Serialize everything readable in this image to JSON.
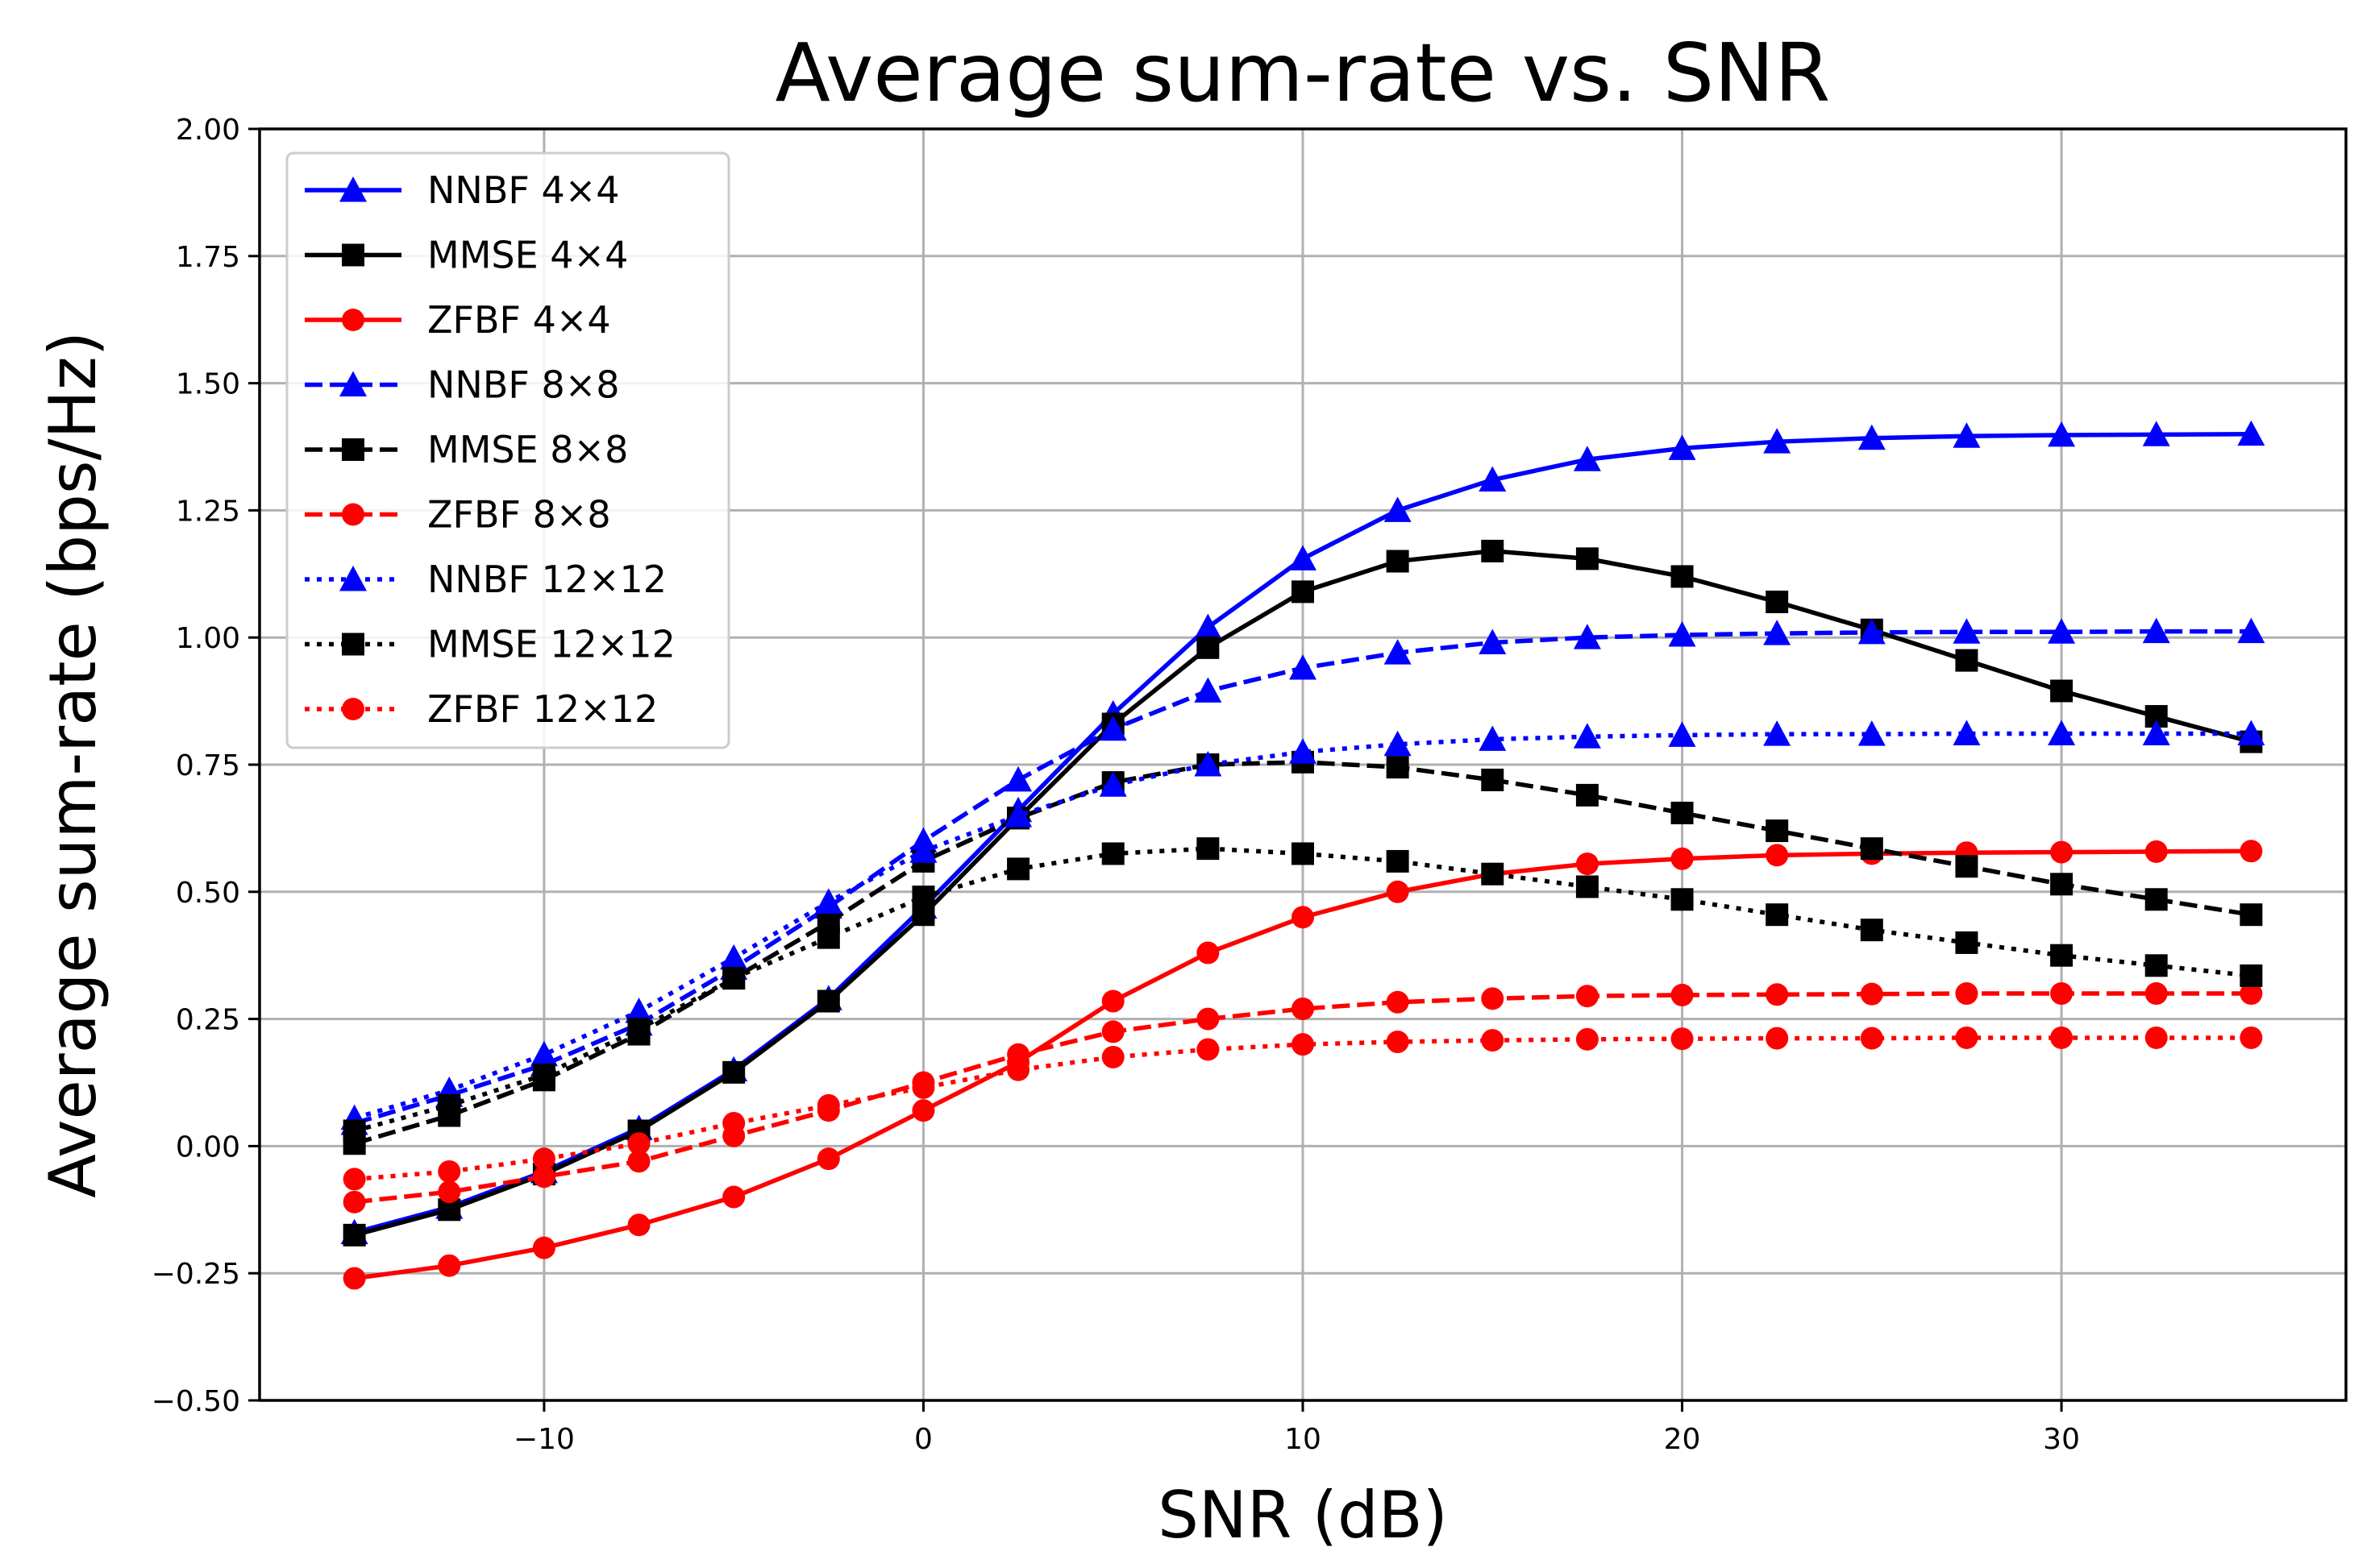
{
  "chart_data": {
    "type": "line",
    "title": "Average sum-rate vs. SNR",
    "xlabel": "SNR (dB)",
    "ylabel": "Average sum-rate (bps/Hz)",
    "xlim": [
      -17.5,
      37.5
    ],
    "ylim": [
      -0.5,
      2.0
    ],
    "xticks": [
      -10,
      0,
      10,
      20,
      30
    ],
    "xtick_labels": [
      "−10",
      "0",
      "10",
      "20",
      "30"
    ],
    "yticks": [
      -0.5,
      -0.25,
      0,
      0.25,
      0.5,
      0.75,
      1.0,
      1.25,
      1.5,
      1.75,
      2.0
    ],
    "ytick_labels": [
      "−0.50",
      "−0.25",
      "0.00",
      "0.25",
      "0.50",
      "0.75",
      "1.00",
      "1.25",
      "1.50",
      "1.75",
      "2.00"
    ],
    "grid": true,
    "legend_position": "top-left",
    "x": [
      -15,
      -12.5,
      -10,
      -7.5,
      -5,
      -2.5,
      0,
      2.5,
      5,
      7.5,
      10,
      12.5,
      15,
      17.5,
      20,
      22.5,
      25,
      27.5,
      30,
      32.5,
      35
    ],
    "series": [
      {
        "name": "NNBF 4×4",
        "color": "#0000ff",
        "linestyle": "solid",
        "marker": "triangle",
        "values": [
          -0.17,
          -0.12,
          -0.05,
          0.035,
          0.15,
          0.29,
          0.47,
          0.66,
          0.85,
          1.02,
          1.155,
          1.25,
          1.31,
          1.35,
          1.372,
          1.385,
          1.392,
          1.396,
          1.398,
          1.399,
          1.4
        ]
      },
      {
        "name": "MMSE 4×4",
        "color": "#000000",
        "linestyle": "solid",
        "marker": "square",
        "values": [
          -0.175,
          -0.125,
          -0.055,
          0.03,
          0.145,
          0.285,
          0.455,
          0.645,
          0.83,
          0.98,
          1.09,
          1.15,
          1.17,
          1.155,
          1.12,
          1.07,
          1.015,
          0.955,
          0.895,
          0.845,
          0.795
        ]
      },
      {
        "name": "ZFBF 4×4",
        "color": "#ff0000",
        "linestyle": "solid",
        "marker": "circle",
        "values": [
          -0.26,
          -0.235,
          -0.2,
          -0.155,
          -0.1,
          -0.025,
          0.07,
          0.165,
          0.285,
          0.38,
          0.45,
          0.5,
          0.535,
          0.555,
          0.565,
          0.572,
          0.575,
          0.577,
          0.578,
          0.579,
          0.58
        ]
      },
      {
        "name": "NNBF 8×8",
        "color": "#0000ff",
        "linestyle": "dashed",
        "marker": "triangle",
        "values": [
          0.045,
          0.1,
          0.16,
          0.24,
          0.35,
          0.47,
          0.6,
          0.72,
          0.82,
          0.895,
          0.94,
          0.97,
          0.99,
          1.0,
          1.005,
          1.008,
          1.01,
          1.011,
          1.011,
          1.012,
          1.012
        ]
      },
      {
        "name": "MMSE 8×8",
        "color": "#000000",
        "linestyle": "dashed",
        "marker": "square",
        "values": [
          0.005,
          0.06,
          0.13,
          0.22,
          0.33,
          0.44,
          0.56,
          0.645,
          0.715,
          0.75,
          0.755,
          0.745,
          0.72,
          0.69,
          0.655,
          0.62,
          0.585,
          0.55,
          0.515,
          0.485,
          0.455
        ]
      },
      {
        "name": "ZFBF 8×8",
        "color": "#ff0000",
        "linestyle": "dashed",
        "marker": "circle",
        "values": [
          -0.11,
          -0.09,
          -0.06,
          -0.03,
          0.02,
          0.07,
          0.125,
          0.18,
          0.225,
          0.25,
          0.27,
          0.283,
          0.29,
          0.295,
          0.297,
          0.298,
          0.299,
          0.3,
          0.3,
          0.3,
          0.3
        ]
      },
      {
        "name": "NNBF 12×12",
        "color": "#0000ff",
        "linestyle": "dotted",
        "marker": "triangle",
        "values": [
          0.055,
          0.11,
          0.18,
          0.265,
          0.37,
          0.48,
          0.58,
          0.65,
          0.71,
          0.75,
          0.775,
          0.79,
          0.8,
          0.805,
          0.808,
          0.81,
          0.81,
          0.811,
          0.811,
          0.811,
          0.811
        ]
      },
      {
        "name": "MMSE 12×12",
        "color": "#000000",
        "linestyle": "dotted",
        "marker": "square",
        "values": [
          0.03,
          0.08,
          0.14,
          0.23,
          0.33,
          0.41,
          0.49,
          0.545,
          0.575,
          0.585,
          0.575,
          0.56,
          0.535,
          0.51,
          0.485,
          0.455,
          0.425,
          0.4,
          0.375,
          0.355,
          0.335
        ]
      },
      {
        "name": "ZFBF 12×12",
        "color": "#ff0000",
        "linestyle": "dotted",
        "marker": "circle",
        "values": [
          -0.065,
          -0.05,
          -0.025,
          0.005,
          0.045,
          0.08,
          0.115,
          0.15,
          0.175,
          0.19,
          0.2,
          0.205,
          0.208,
          0.21,
          0.211,
          0.212,
          0.212,
          0.213,
          0.213,
          0.213,
          0.213
        ]
      }
    ]
  }
}
